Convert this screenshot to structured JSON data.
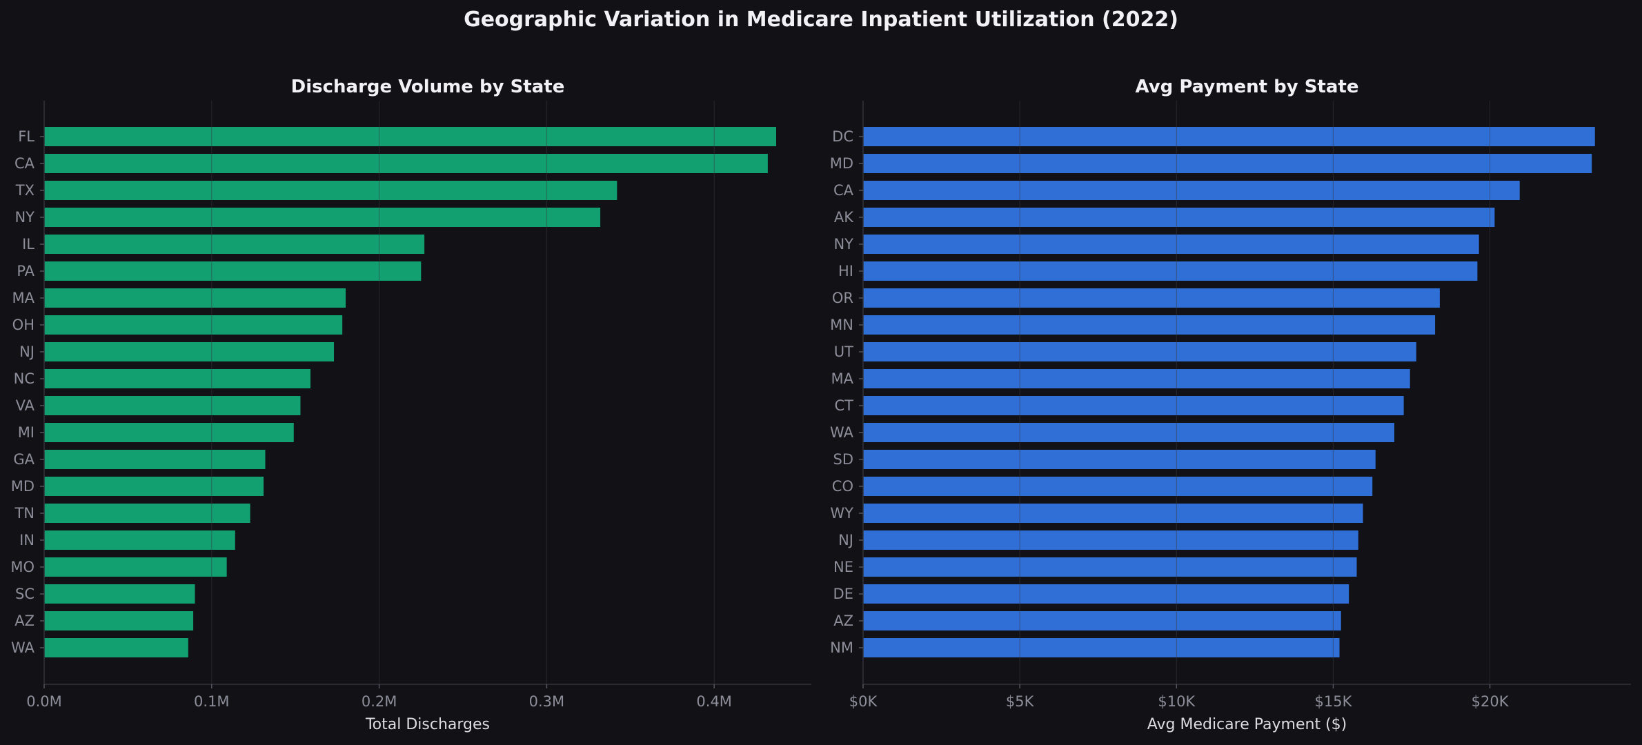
{
  "figure": {
    "title": "Geographic Variation in Medicare Inpatient Utilization (2022)"
  },
  "chart_data": [
    {
      "type": "bar",
      "orientation": "horizontal",
      "title": "Discharge Volume by State",
      "xlabel": "Total Discharges",
      "ylabel": "",
      "color": "#12a070",
      "xlim": [
        0,
        458000
      ],
      "x_ticks": [
        0,
        100000,
        200000,
        300000,
        400000
      ],
      "x_tick_labels": [
        "0.0M",
        "0.1M",
        "0.2M",
        "0.3M",
        "0.4M"
      ],
      "grid": true,
      "categories": [
        "FL",
        "CA",
        "TX",
        "NY",
        "IL",
        "PA",
        "MA",
        "OH",
        "NJ",
        "NC",
        "VA",
        "MI",
        "GA",
        "MD",
        "TN",
        "IN",
        "MO",
        "SC",
        "AZ",
        "WA"
      ],
      "values": [
        437000,
        432000,
        342000,
        332000,
        227000,
        225000,
        180000,
        178000,
        173000,
        159000,
        153000,
        149000,
        132000,
        131000,
        123000,
        114000,
        109000,
        90000,
        89000,
        86000
      ]
    },
    {
      "type": "bar",
      "orientation": "horizontal",
      "title": "Avg Payment by State",
      "xlabel": "Avg Medicare Payment ($)",
      "ylabel": "",
      "color": "#2f6fd6",
      "xlim": [
        0,
        24500
      ],
      "x_ticks": [
        0,
        5000,
        10000,
        15000,
        20000
      ],
      "x_tick_labels": [
        "$0K",
        "$5K",
        "$10K",
        "$15K",
        "$20K"
      ],
      "grid": true,
      "categories": [
        "DC",
        "MD",
        "CA",
        "AK",
        "NY",
        "HI",
        "OR",
        "MN",
        "UT",
        "MA",
        "CT",
        "WA",
        "SD",
        "CO",
        "WY",
        "NJ",
        "NE",
        "DE",
        "AZ",
        "NM"
      ],
      "values": [
        23350,
        23250,
        20950,
        20150,
        19650,
        19600,
        18400,
        18250,
        17650,
        17450,
        17250,
        16950,
        16350,
        16250,
        15950,
        15800,
        15750,
        15500,
        15250,
        15200
      ]
    }
  ]
}
